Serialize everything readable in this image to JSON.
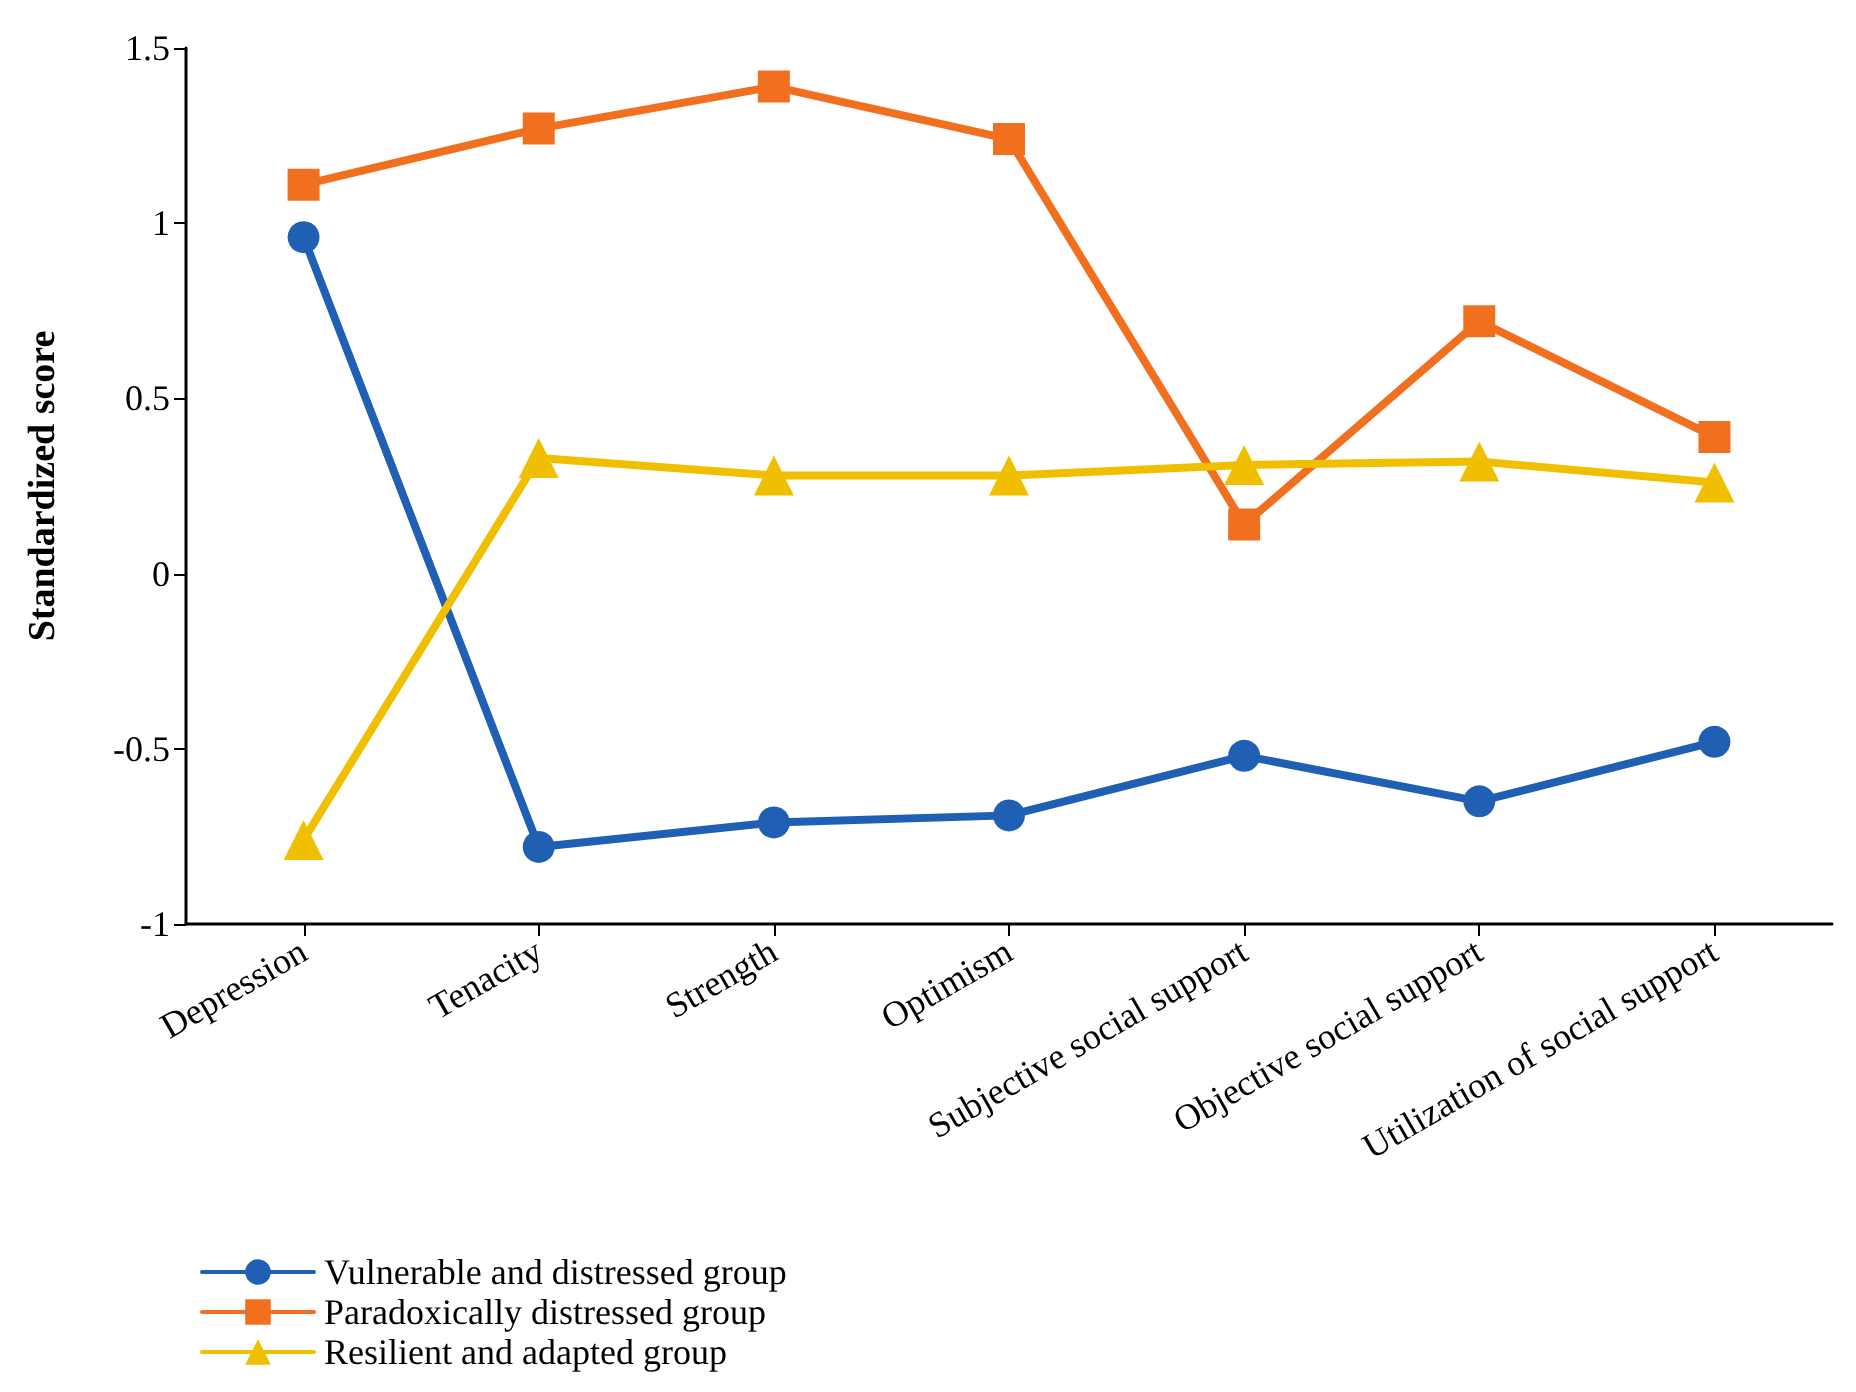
{
  "chart_data": {
    "type": "line",
    "ylabel": "Standardized score",
    "categories": [
      "Depression",
      "Tenacity",
      "Strength",
      "Optimism",
      "Subjective social support",
      "Objective social support",
      "Utilization of social support"
    ],
    "series": [
      {
        "name": "Vulnerable and distressed group",
        "color": "#1f5fb4",
        "marker": "circle",
        "values": [
          0.96,
          -0.78,
          -0.71,
          -0.69,
          -0.52,
          -0.65,
          -0.48
        ]
      },
      {
        "name": "Paradoxically distressed group",
        "color": "#f07020",
        "marker": "square",
        "values": [
          1.11,
          1.27,
          1.39,
          1.24,
          0.14,
          0.72,
          0.39
        ]
      },
      {
        "name": "Resilient and adapted group",
        "color": "#f0c000",
        "marker": "triangle",
        "values": [
          -0.76,
          0.33,
          0.28,
          0.28,
          0.31,
          0.32,
          0.26
        ]
      }
    ],
    "ylim": [
      -1,
      1.5
    ],
    "yticks": [
      -1,
      -0.5,
      0,
      0.5,
      1,
      1.5
    ],
    "grid": false,
    "legend": "bottom left",
    "line_style": "solid"
  }
}
